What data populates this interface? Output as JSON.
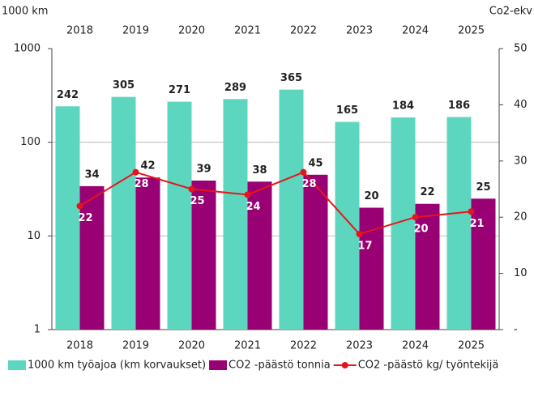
{
  "chart_data": {
    "type": "bar_line",
    "y_label": "1000 km",
    "y2_label": "Co2-ekv",
    "categories": [
      "2018",
      "2019",
      "2020",
      "2021",
      "2022",
      "2023",
      "2024",
      "2025"
    ],
    "series": [
      {
        "name": "1000 km työajoa (km korvaukset)",
        "color": "#5dd6c0",
        "type": "bar",
        "values": [
          242,
          305,
          271,
          289,
          365,
          165,
          184,
          186
        ]
      },
      {
        "name": "CO2 -päästö tonnia",
        "color": "#990073",
        "type": "bar",
        "values": [
          34,
          42,
          39,
          38,
          45,
          20,
          22,
          25
        ]
      },
      {
        "name": "CO2 -päästö kg/ työntekijä",
        "color": "#e8141b",
        "type": "line",
        "axis": "y2",
        "values": [
          22,
          28,
          25,
          24,
          28,
          17,
          20,
          21
        ]
      }
    ],
    "ylim": [
      1,
      1000
    ],
    "yticks": [
      1,
      10,
      100,
      1000
    ],
    "ylog": true,
    "y2lim": [
      0,
      50
    ],
    "y2ticks": [
      {
        "value": 0,
        "label": "-"
      },
      10,
      20,
      30,
      40,
      50
    ],
    "grid": true,
    "legend": "bottom"
  }
}
